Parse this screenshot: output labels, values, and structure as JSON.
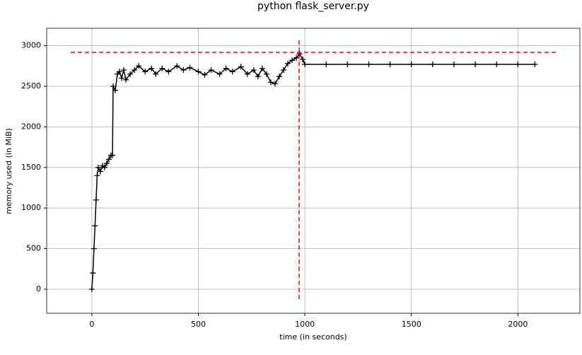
{
  "chart_data": {
    "type": "line",
    "title": "python flask_server.py",
    "xlabel": "time (in seconds)",
    "ylabel": "memory used (in MiB)",
    "x": [
      0,
      5,
      10,
      15,
      20,
      25,
      30,
      40,
      50,
      60,
      70,
      80,
      90,
      97,
      100,
      110,
      120,
      130,
      140,
      150,
      160,
      180,
      200,
      220,
      250,
      280,
      300,
      330,
      360,
      400,
      430,
      460,
      500,
      530,
      560,
      600,
      630,
      660,
      700,
      730,
      760,
      780,
      800,
      820,
      840,
      860,
      880,
      900,
      920,
      940,
      960,
      975,
      990,
      1000,
      1100,
      1200,
      1300,
      1400,
      1500,
      1600,
      1700,
      1800,
      1900,
      2000,
      2080
    ],
    "values": [
      0,
      200,
      500,
      780,
      1100,
      1400,
      1500,
      1450,
      1520,
      1500,
      1550,
      1600,
      1650,
      1650,
      2500,
      2450,
      2650,
      2680,
      2600,
      2700,
      2580,
      2650,
      2700,
      2750,
      2680,
      2720,
      2650,
      2720,
      2680,
      2750,
      2700,
      2730,
      2680,
      2640,
      2700,
      2650,
      2720,
      2680,
      2740,
      2650,
      2700,
      2620,
      2720,
      2650,
      2550,
      2530,
      2620,
      2700,
      2780,
      2820,
      2850,
      2900,
      2830,
      2770,
      2770,
      2770,
      2770,
      2770,
      2770,
      2770,
      2770,
      2770,
      2770,
      2770,
      2770
    ],
    "color": "#000000",
    "xlim": [
      -212,
      2291
    ],
    "ylim": [
      -296,
      3214
    ],
    "xticks": [
      0,
      500,
      1000,
      1500,
      2000
    ],
    "yticks": [
      0,
      500,
      1000,
      1500,
      2000,
      2500,
      3000
    ],
    "grid": true,
    "peak": {
      "x": 973,
      "y": 2918,
      "color": "#ff0000"
    }
  }
}
